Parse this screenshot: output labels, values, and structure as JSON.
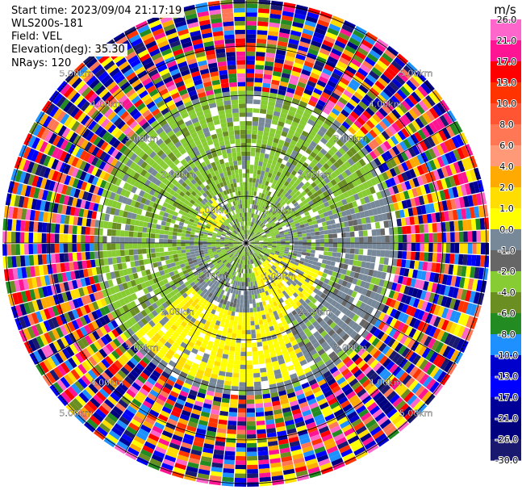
{
  "header": {
    "start_time": "Start time: 2023/09/04 21:17:19",
    "instrument": "WLS200s-181",
    "field": "Field: VEL",
    "elevation": "Elevation(deg): 35.30",
    "nrays": "NRays: 120"
  },
  "ring_labels": [
    "1.00km",
    "2.00km",
    "3.00km",
    "4.00km",
    "5.00km"
  ],
  "colorbar": {
    "unit": "m/s",
    "ticks": [
      "26.0",
      "21.0",
      "17.0",
      "13.0",
      "10.0",
      "8.0",
      "6.0",
      "4.0",
      "2.0",
      "1.0",
      "0.0",
      "-1.0",
      "-2.0",
      "-4.0",
      "-6.0",
      "-8.0",
      "-10.0",
      "-13.0",
      "-17.0",
      "-21.0",
      "-26.0",
      "-30.0"
    ],
    "colors": [
      "#ff66cc",
      "#ff1493",
      "#ff0000",
      "#ff3300",
      "#ff5533",
      "#ff7755",
      "#ff9977",
      "#ffaa00",
      "#ffdd00",
      "#ffff00",
      "#778899",
      "#666666",
      "#88cc33",
      "#6b8e23",
      "#228b22",
      "#1e90ff",
      "#0000cd",
      "#0000ff",
      "#000099",
      "#00007f",
      "#191970"
    ]
  },
  "chart_data": {
    "type": "heatmap",
    "title": "",
    "rings_km": [
      1,
      2,
      3,
      4,
      5
    ],
    "nrays": 120,
    "unit": "m/s",
    "vmin": -30.0,
    "vmax": 26.0
  }
}
